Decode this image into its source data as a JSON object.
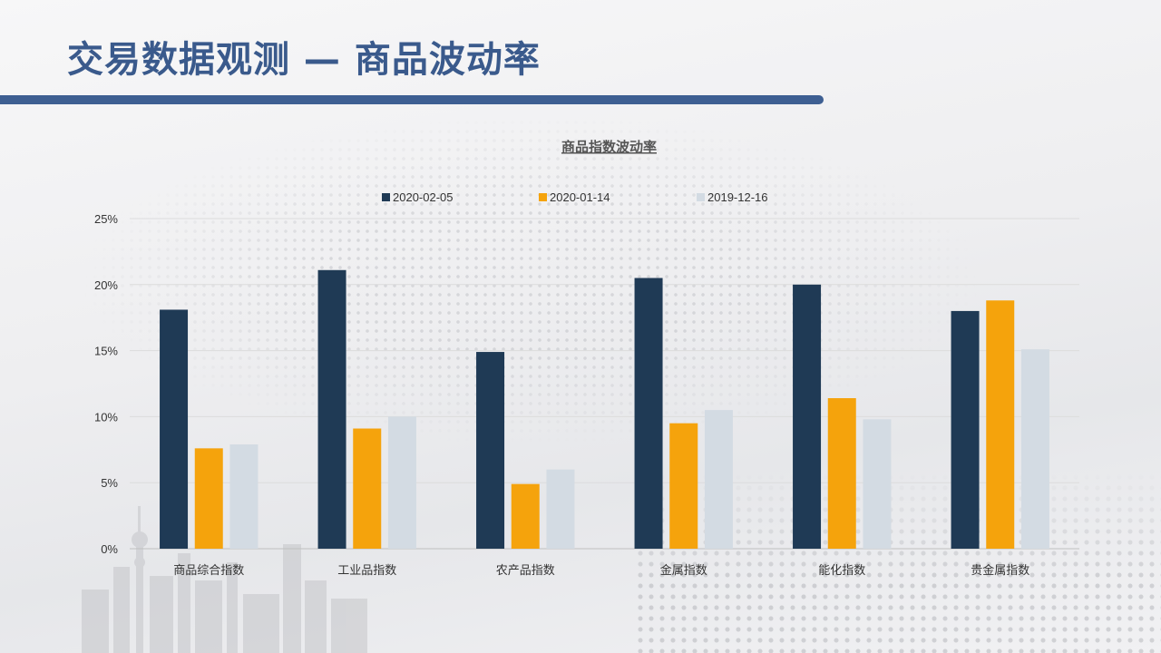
{
  "slide": {
    "title": "交易数据观测 — 商品波动率"
  },
  "colors": {
    "title": "#3a5a8c",
    "title_bar": "#3e5f92",
    "series": [
      "#1f3a55",
      "#f5a30c",
      "#d3dbe3"
    ]
  },
  "chart_data": {
    "type": "bar",
    "title": "商品指数波动率",
    "xlabel": "",
    "ylabel": "",
    "categories": [
      "商品综合指数",
      "工业品指数",
      "农产品指数",
      "金属指数",
      "能化指数",
      "贵金属指数"
    ],
    "series": [
      {
        "name": "2020-02-05",
        "values": [
          18.1,
          21.1,
          14.9,
          20.5,
          20.0,
          18.0
        ]
      },
      {
        "name": "2020-01-14",
        "values": [
          7.6,
          9.1,
          4.9,
          9.5,
          11.4,
          18.8
        ]
      },
      {
        "name": "2019-12-16",
        "values": [
          7.9,
          10.0,
          6.0,
          10.5,
          9.8,
          15.1
        ]
      }
    ],
    "ylim": [
      0,
      25
    ],
    "yticks": [
      "0%",
      "5%",
      "10%",
      "15%",
      "20%",
      "25%"
    ],
    "ytick_values": [
      0,
      5,
      10,
      15,
      20,
      25
    ],
    "grid": true,
    "legend_position": "top"
  }
}
